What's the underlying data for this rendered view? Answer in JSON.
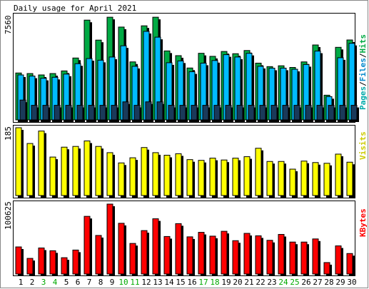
{
  "chart_data": {
    "type": "bar",
    "title": "Daily usage for April 2021",
    "days": [
      "1",
      "2",
      "3",
      "4",
      "5",
      "6",
      "7",
      "8",
      "9",
      "10",
      "11",
      "12",
      "13",
      "14",
      "15",
      "16",
      "17",
      "18",
      "19",
      "20",
      "21",
      "22",
      "23",
      "24",
      "25",
      "26",
      "27",
      "28",
      "29",
      "30"
    ],
    "weekend_days": [
      "3",
      "4",
      "10",
      "11",
      "17",
      "18",
      "24",
      "25"
    ],
    "colors": {
      "hits": "#00aa44",
      "files": "#00bbff",
      "pages": "#1a3a5a",
      "visits": "#ffff00",
      "kbytes": "#ff0000",
      "weekend": "#00aa00",
      "weekday": "#000000",
      "frame_bg": "#d8d8d8"
    },
    "panels": [
      {
        "id": "hits-files-pages",
        "ymax_label": "7560",
        "ymax": 7560,
        "legend": [
          {
            "text": "Pages",
            "color": "#00aaaa"
          },
          {
            "text": "/",
            "color": "#000000"
          },
          {
            "text": "Files",
            "color": "#0088cc"
          },
          {
            "text": "/",
            "color": "#000000"
          },
          {
            "text": "Hits",
            "color": "#00aa44"
          }
        ],
        "series": [
          {
            "key": "hits",
            "values": [
              3380,
              3340,
              3240,
              3340,
              3530,
              4460,
              7190,
              5750,
              7400,
              6690,
              4180,
              6780,
              7400,
              4970,
              4630,
              3740,
              4800,
              4580,
              4930,
              4770,
              5000,
              4090,
              3840,
              3900,
              3780,
              4180,
              5400,
              1780,
              5230,
              5760
            ]
          },
          {
            "key": "files",
            "values": [
              3240,
              3160,
              3000,
              3070,
              3300,
              4050,
              4420,
              4300,
              4530,
              5340,
              3860,
              6380,
              5960,
              4120,
              4250,
              3470,
              4090,
              4280,
              4700,
              4530,
              4800,
              3860,
              3730,
              3730,
              3650,
              3990,
              4960,
              1680,
              4480,
              5520
            ]
          },
          {
            "key": "pages",
            "values": [
              1430,
              1050,
              1050,
              1050,
              1050,
              1050,
              1050,
              1050,
              1050,
              1300,
              1050,
              1300,
              1300,
              1050,
              1050,
              1050,
              1050,
              1050,
              1050,
              1050,
              1050,
              1050,
              1050,
              1050,
              1050,
              1050,
              1050,
              1050,
              1050,
              1050
            ]
          }
        ]
      },
      {
        "id": "visits",
        "ymax_label": "185",
        "ymax": 185,
        "legend": [
          {
            "text": "Visits",
            "color": "#cccc00"
          }
        ],
        "series": [
          {
            "key": "visits",
            "values": [
              185,
              142,
              176,
              105,
              132,
              134,
              149,
              134,
              117,
              89,
              103,
              131,
              117,
              110,
              114,
              98,
              96,
              102,
              97,
              102,
              106,
              129,
              93,
              93,
              72,
              94,
              90,
              88,
              113,
              91
            ]
          }
        ]
      },
      {
        "id": "kbytes",
        "ymax_label": "100625",
        "ymax": 100625,
        "legend": [
          {
            "text": "KBytes",
            "color": "#ff0000"
          }
        ],
        "series": [
          {
            "key": "kbytes",
            "values": [
              39000,
              22500,
              37500,
              33500,
              23500,
              34500,
              83000,
              55500,
              100625,
              73000,
              44000,
              62500,
              79500,
              54000,
              72500,
              53500,
              60000,
              54500,
              61500,
              48000,
              58500,
              55000,
              48500,
              57000,
              46000,
              46000,
              50500,
              16500,
              40500,
              29500
            ]
          }
        ]
      }
    ]
  }
}
